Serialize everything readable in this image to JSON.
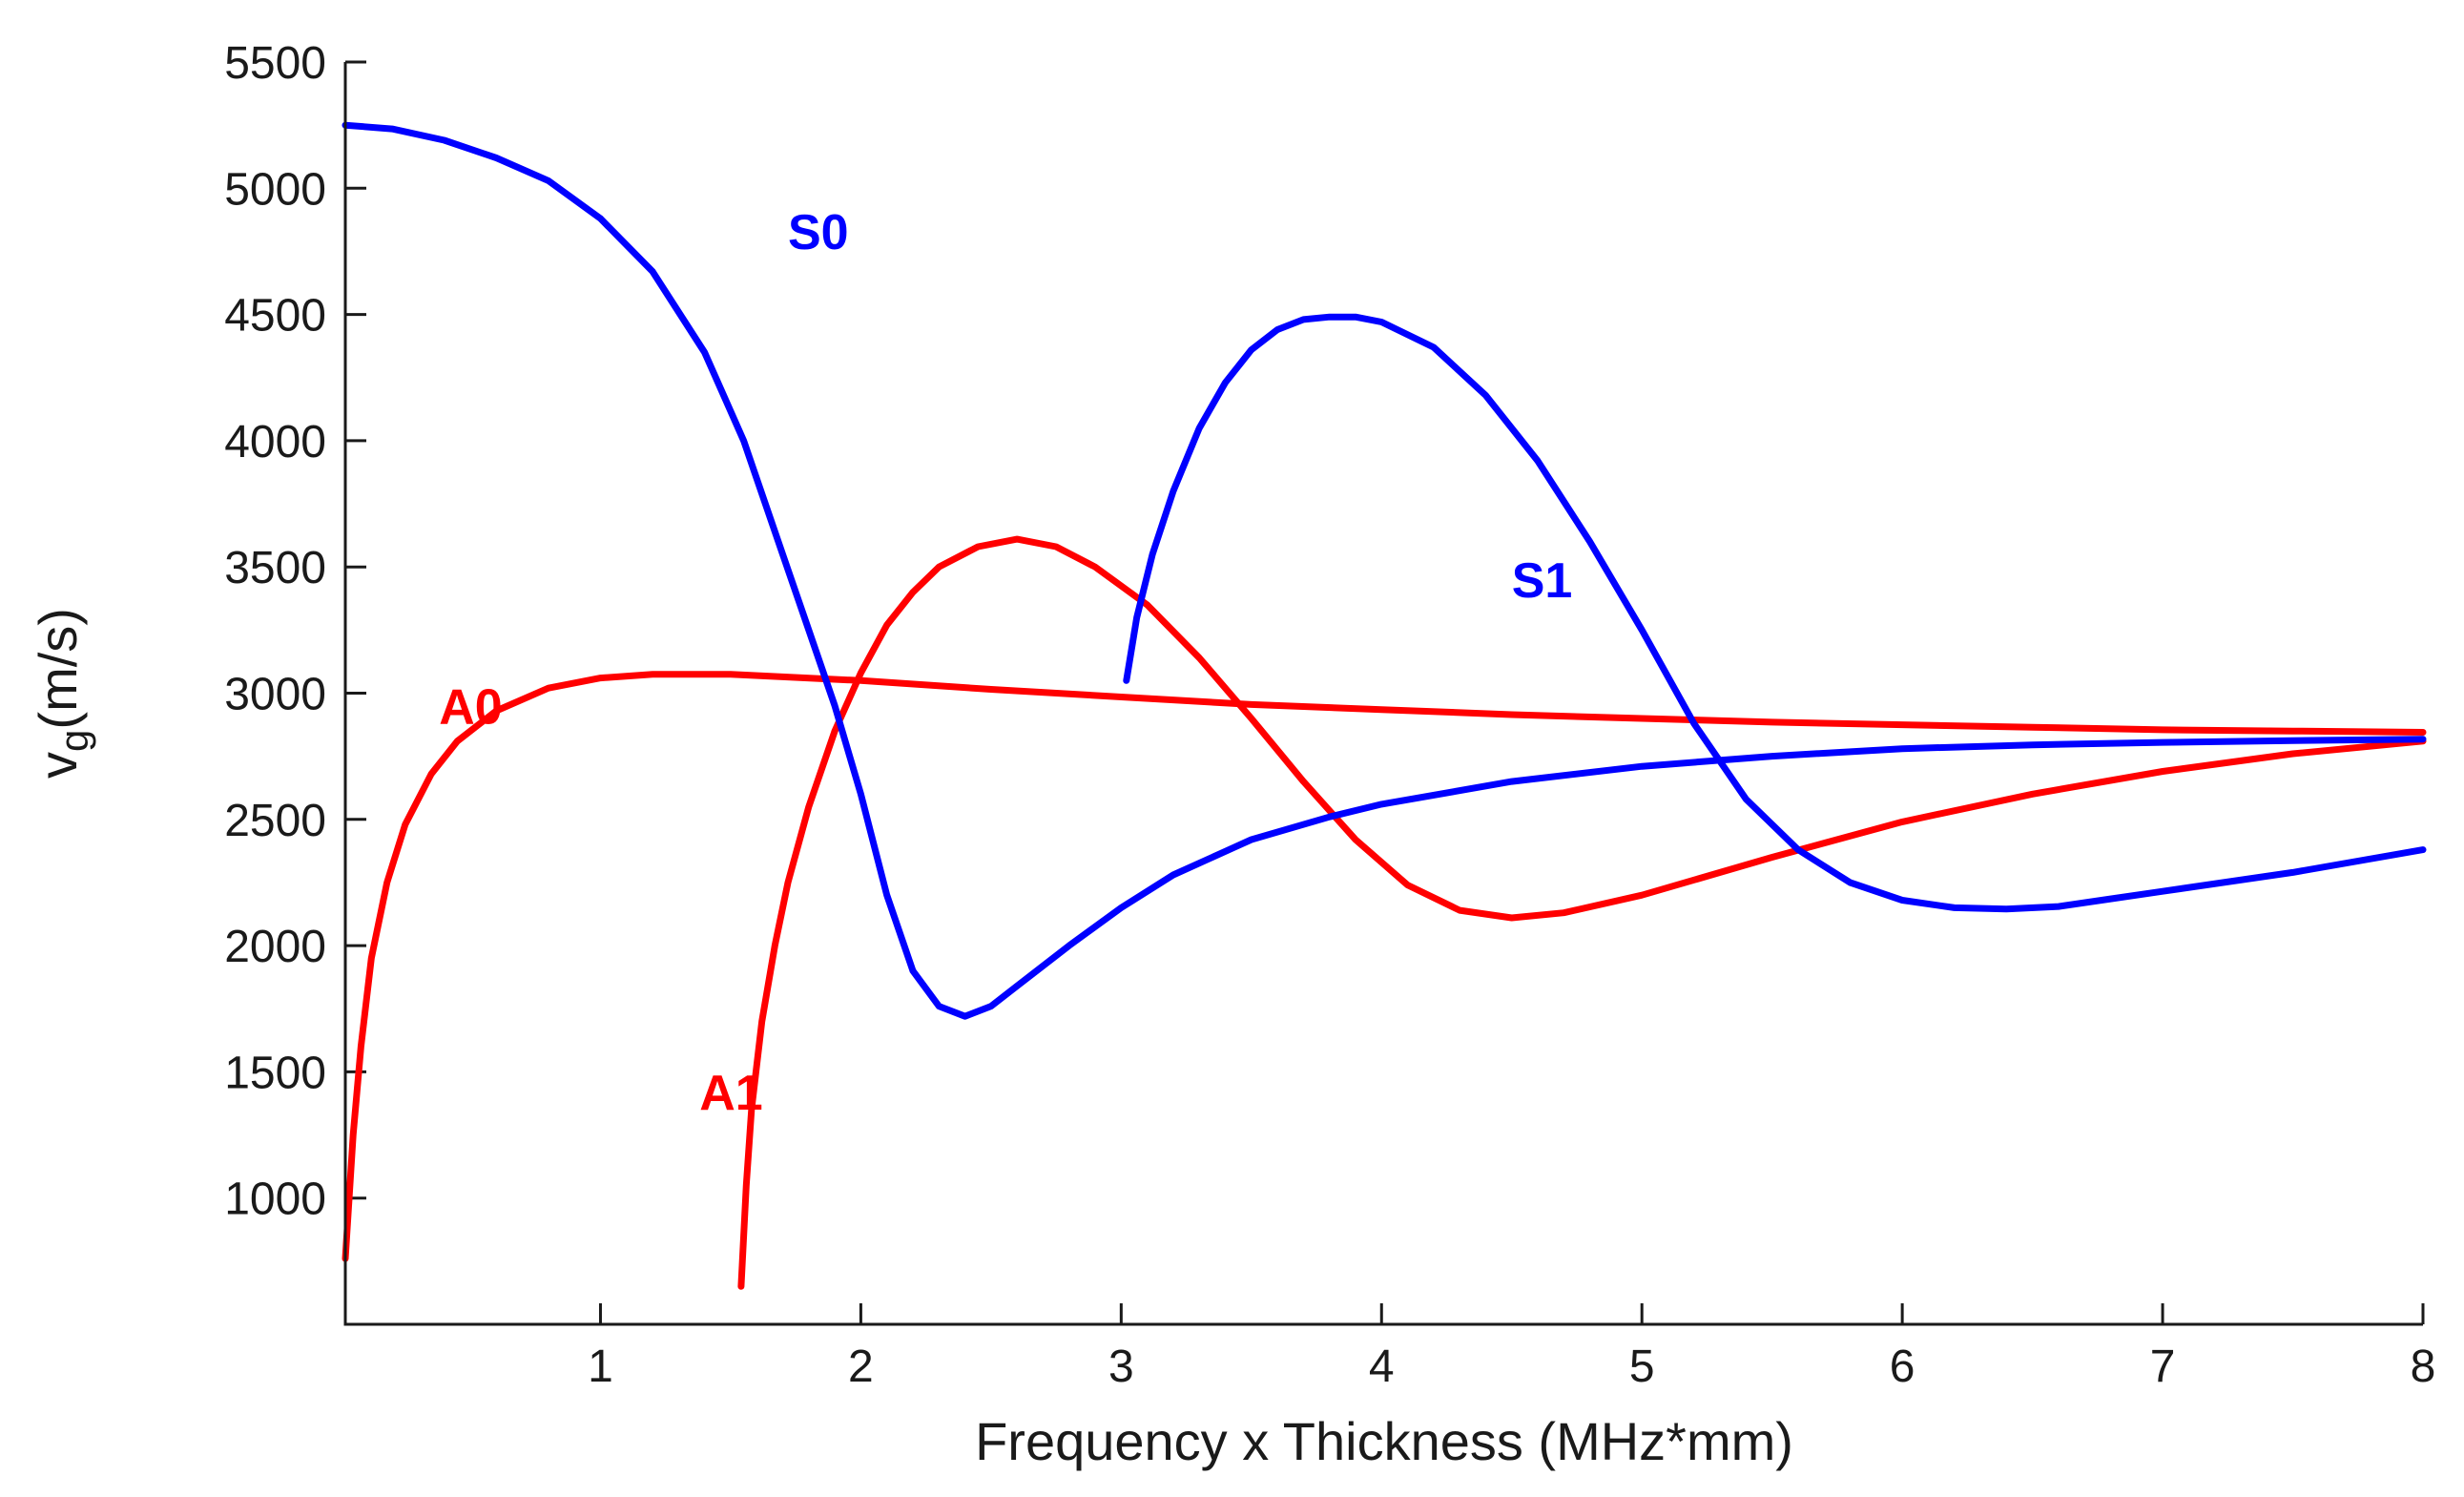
{
  "chart_data": {
    "type": "line",
    "title": "",
    "xlabel": "Frequency x Thickness (MHz*mm)",
    "ylabel_main": "v",
    "ylabel_sub": "g",
    "ylabel_units": "(m/s)",
    "xlim": [
      0.02,
      8.0
    ],
    "ylim": [
      500,
      5500
    ],
    "xticks": [
      1,
      2,
      3,
      4,
      5,
      6,
      7,
      8
    ],
    "xtick_labels": [
      "1",
      "2",
      "3",
      "4",
      "5",
      "6",
      "7",
      "8"
    ],
    "yticks": [
      1000,
      1500,
      2000,
      2500,
      3000,
      3500,
      4000,
      4500,
      5000,
      5500
    ],
    "ytick_labels": [
      "1000",
      "1500",
      "2000",
      "2500",
      "3000",
      "3500",
      "4000",
      "4500",
      "5000",
      "5500"
    ],
    "grid": false,
    "series": [
      {
        "name": "A0",
        "color": "#ff0000",
        "label_pos": [
          0.38,
          2880
        ],
        "x": [
          0.02,
          0.05,
          0.08,
          0.12,
          0.18,
          0.25,
          0.35,
          0.45,
          0.6,
          0.8,
          1.0,
          1.2,
          1.5,
          2.0,
          2.5,
          3.0,
          3.5,
          4.0,
          4.5,
          5.0,
          5.5,
          6.0,
          6.5,
          7.0,
          7.5,
          8.0
        ],
        "y": [
          760,
          1250,
          1600,
          1950,
          2250,
          2480,
          2680,
          2810,
          2930,
          3020,
          3060,
          3075,
          3075,
          3050,
          3015,
          2985,
          2955,
          2935,
          2915,
          2900,
          2885,
          2875,
          2865,
          2855,
          2850,
          2845
        ]
      },
      {
        "name": "A1",
        "color": "#ff0000",
        "label_pos": [
          1.38,
          1350
        ],
        "x": [
          1.54,
          1.56,
          1.58,
          1.62,
          1.67,
          1.72,
          1.8,
          1.9,
          2.0,
          2.1,
          2.2,
          2.3,
          2.45,
          2.6,
          2.75,
          2.9,
          3.1,
          3.3,
          3.5,
          3.7,
          3.9,
          4.1,
          4.3,
          4.5,
          4.7,
          5.0,
          5.5,
          6.0,
          6.5,
          7.0,
          7.5,
          8.0
        ],
        "y": [
          650,
          1050,
          1350,
          1700,
          2000,
          2250,
          2550,
          2850,
          3080,
          3270,
          3400,
          3500,
          3580,
          3610,
          3580,
          3500,
          3350,
          3140,
          2900,
          2650,
          2420,
          2240,
          2140,
          2110,
          2130,
          2200,
          2350,
          2490,
          2600,
          2690,
          2760,
          2810
        ]
      },
      {
        "name": "S0",
        "color": "#0000ff",
        "label_pos": [
          1.72,
          4760
        ],
        "x": [
          0.02,
          0.2,
          0.4,
          0.6,
          0.8,
          1.0,
          1.2,
          1.4,
          1.55,
          1.7,
          1.8,
          1.9,
          2.0,
          2.1,
          2.2,
          2.3,
          2.4,
          2.5,
          2.6,
          2.8,
          3.0,
          3.2,
          3.5,
          3.8,
          4.0,
          4.5,
          5.0,
          5.5,
          6.0,
          6.5,
          7.0,
          7.5,
          8.0
        ],
        "y": [
          5250,
          5235,
          5190,
          5120,
          5030,
          4880,
          4670,
          4350,
          4000,
          3550,
          3250,
          2950,
          2600,
          2200,
          1900,
          1760,
          1720,
          1760,
          1840,
          2000,
          2150,
          2280,
          2420,
          2510,
          2560,
          2650,
          2710,
          2750,
          2780,
          2795,
          2805,
          2812,
          2818
        ]
      },
      {
        "name": "S1",
        "color": "#0000ff",
        "label_pos": [
          4.5,
          3380
        ],
        "x": [
          3.02,
          3.06,
          3.12,
          3.2,
          3.3,
          3.4,
          3.5,
          3.6,
          3.7,
          3.8,
          3.9,
          4.0,
          4.2,
          4.4,
          4.6,
          4.8,
          5.0,
          5.2,
          5.4,
          5.6,
          5.8,
          6.0,
          6.2,
          6.4,
          6.6,
          6.8,
          7.0,
          7.5,
          8.0
        ],
        "y": [
          3050,
          3300,
          3550,
          3800,
          4050,
          4230,
          4360,
          4440,
          4480,
          4490,
          4490,
          4470,
          4370,
          4180,
          3920,
          3600,
          3250,
          2880,
          2580,
          2380,
          2250,
          2180,
          2150,
          2145,
          2155,
          2185,
          2215,
          2290,
          2380
        ]
      }
    ]
  }
}
